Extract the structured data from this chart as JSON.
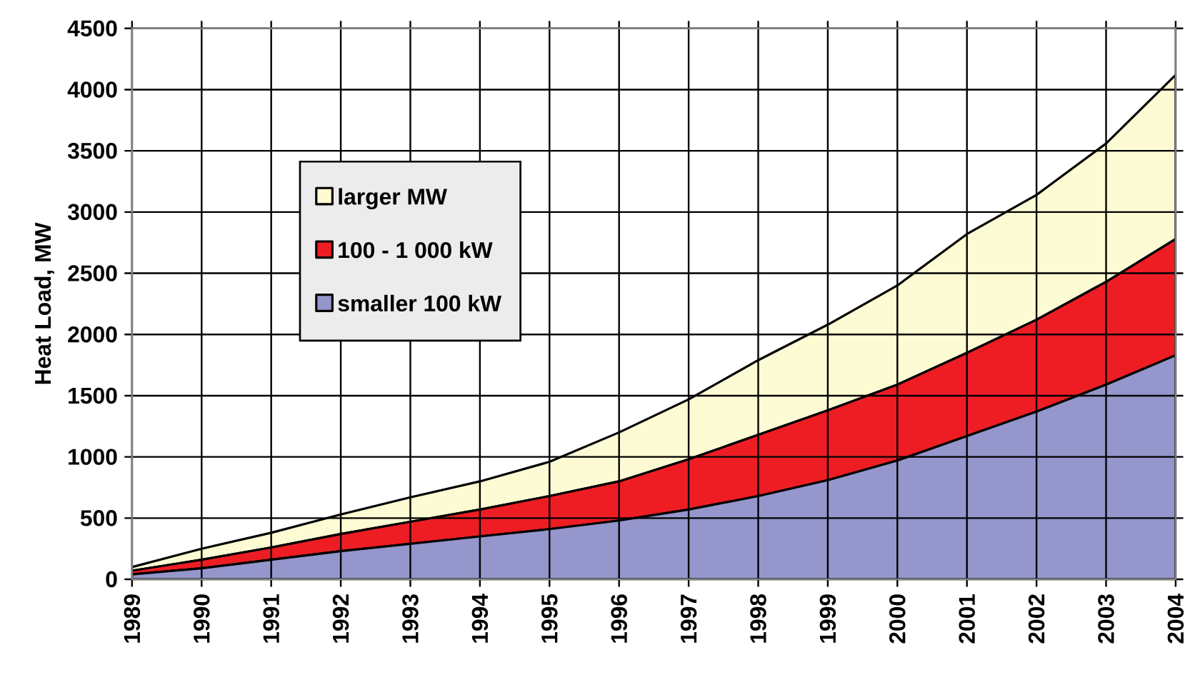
{
  "chart_data": {
    "type": "area",
    "stacked": true,
    "ylabel": "Heat Load, MW",
    "x": [
      1989,
      1990,
      1991,
      1992,
      1993,
      1994,
      1995,
      1996,
      1997,
      1998,
      1999,
      2000,
      2001,
      2002,
      2003,
      2004
    ],
    "series": [
      {
        "name": "smaller 100 kW",
        "color": "#9496cc",
        "values": [
          40,
          90,
          160,
          230,
          290,
          350,
          410,
          480,
          570,
          680,
          810,
          970,
          1170,
          1370,
          1590,
          1830
        ]
      },
      {
        "name": "100 - 1 000 kW",
        "color": "#ee1d24",
        "values": [
          30,
          70,
          100,
          140,
          180,
          220,
          270,
          320,
          410,
          500,
          570,
          620,
          680,
          750,
          840,
          950
        ]
      },
      {
        "name": "larger MW",
        "color": "#fdfbd3",
        "values": [
          30,
          90,
          120,
          160,
          200,
          230,
          280,
          400,
          490,
          610,
          700,
          810,
          970,
          1020,
          1130,
          1340
        ]
      }
    ],
    "xlim": [
      1989,
      2004
    ],
    "xticks": [
      1989,
      1990,
      1991,
      1992,
      1993,
      1994,
      1995,
      1996,
      1997,
      1998,
      1999,
      2000,
      2001,
      2002,
      2003,
      2004
    ],
    "ylim": [
      0,
      4500
    ],
    "yticks": [
      0,
      500,
      1000,
      1500,
      2000,
      2500,
      3000,
      3500,
      4000,
      4500
    ],
    "grid": true,
    "legend": "top left"
  }
}
